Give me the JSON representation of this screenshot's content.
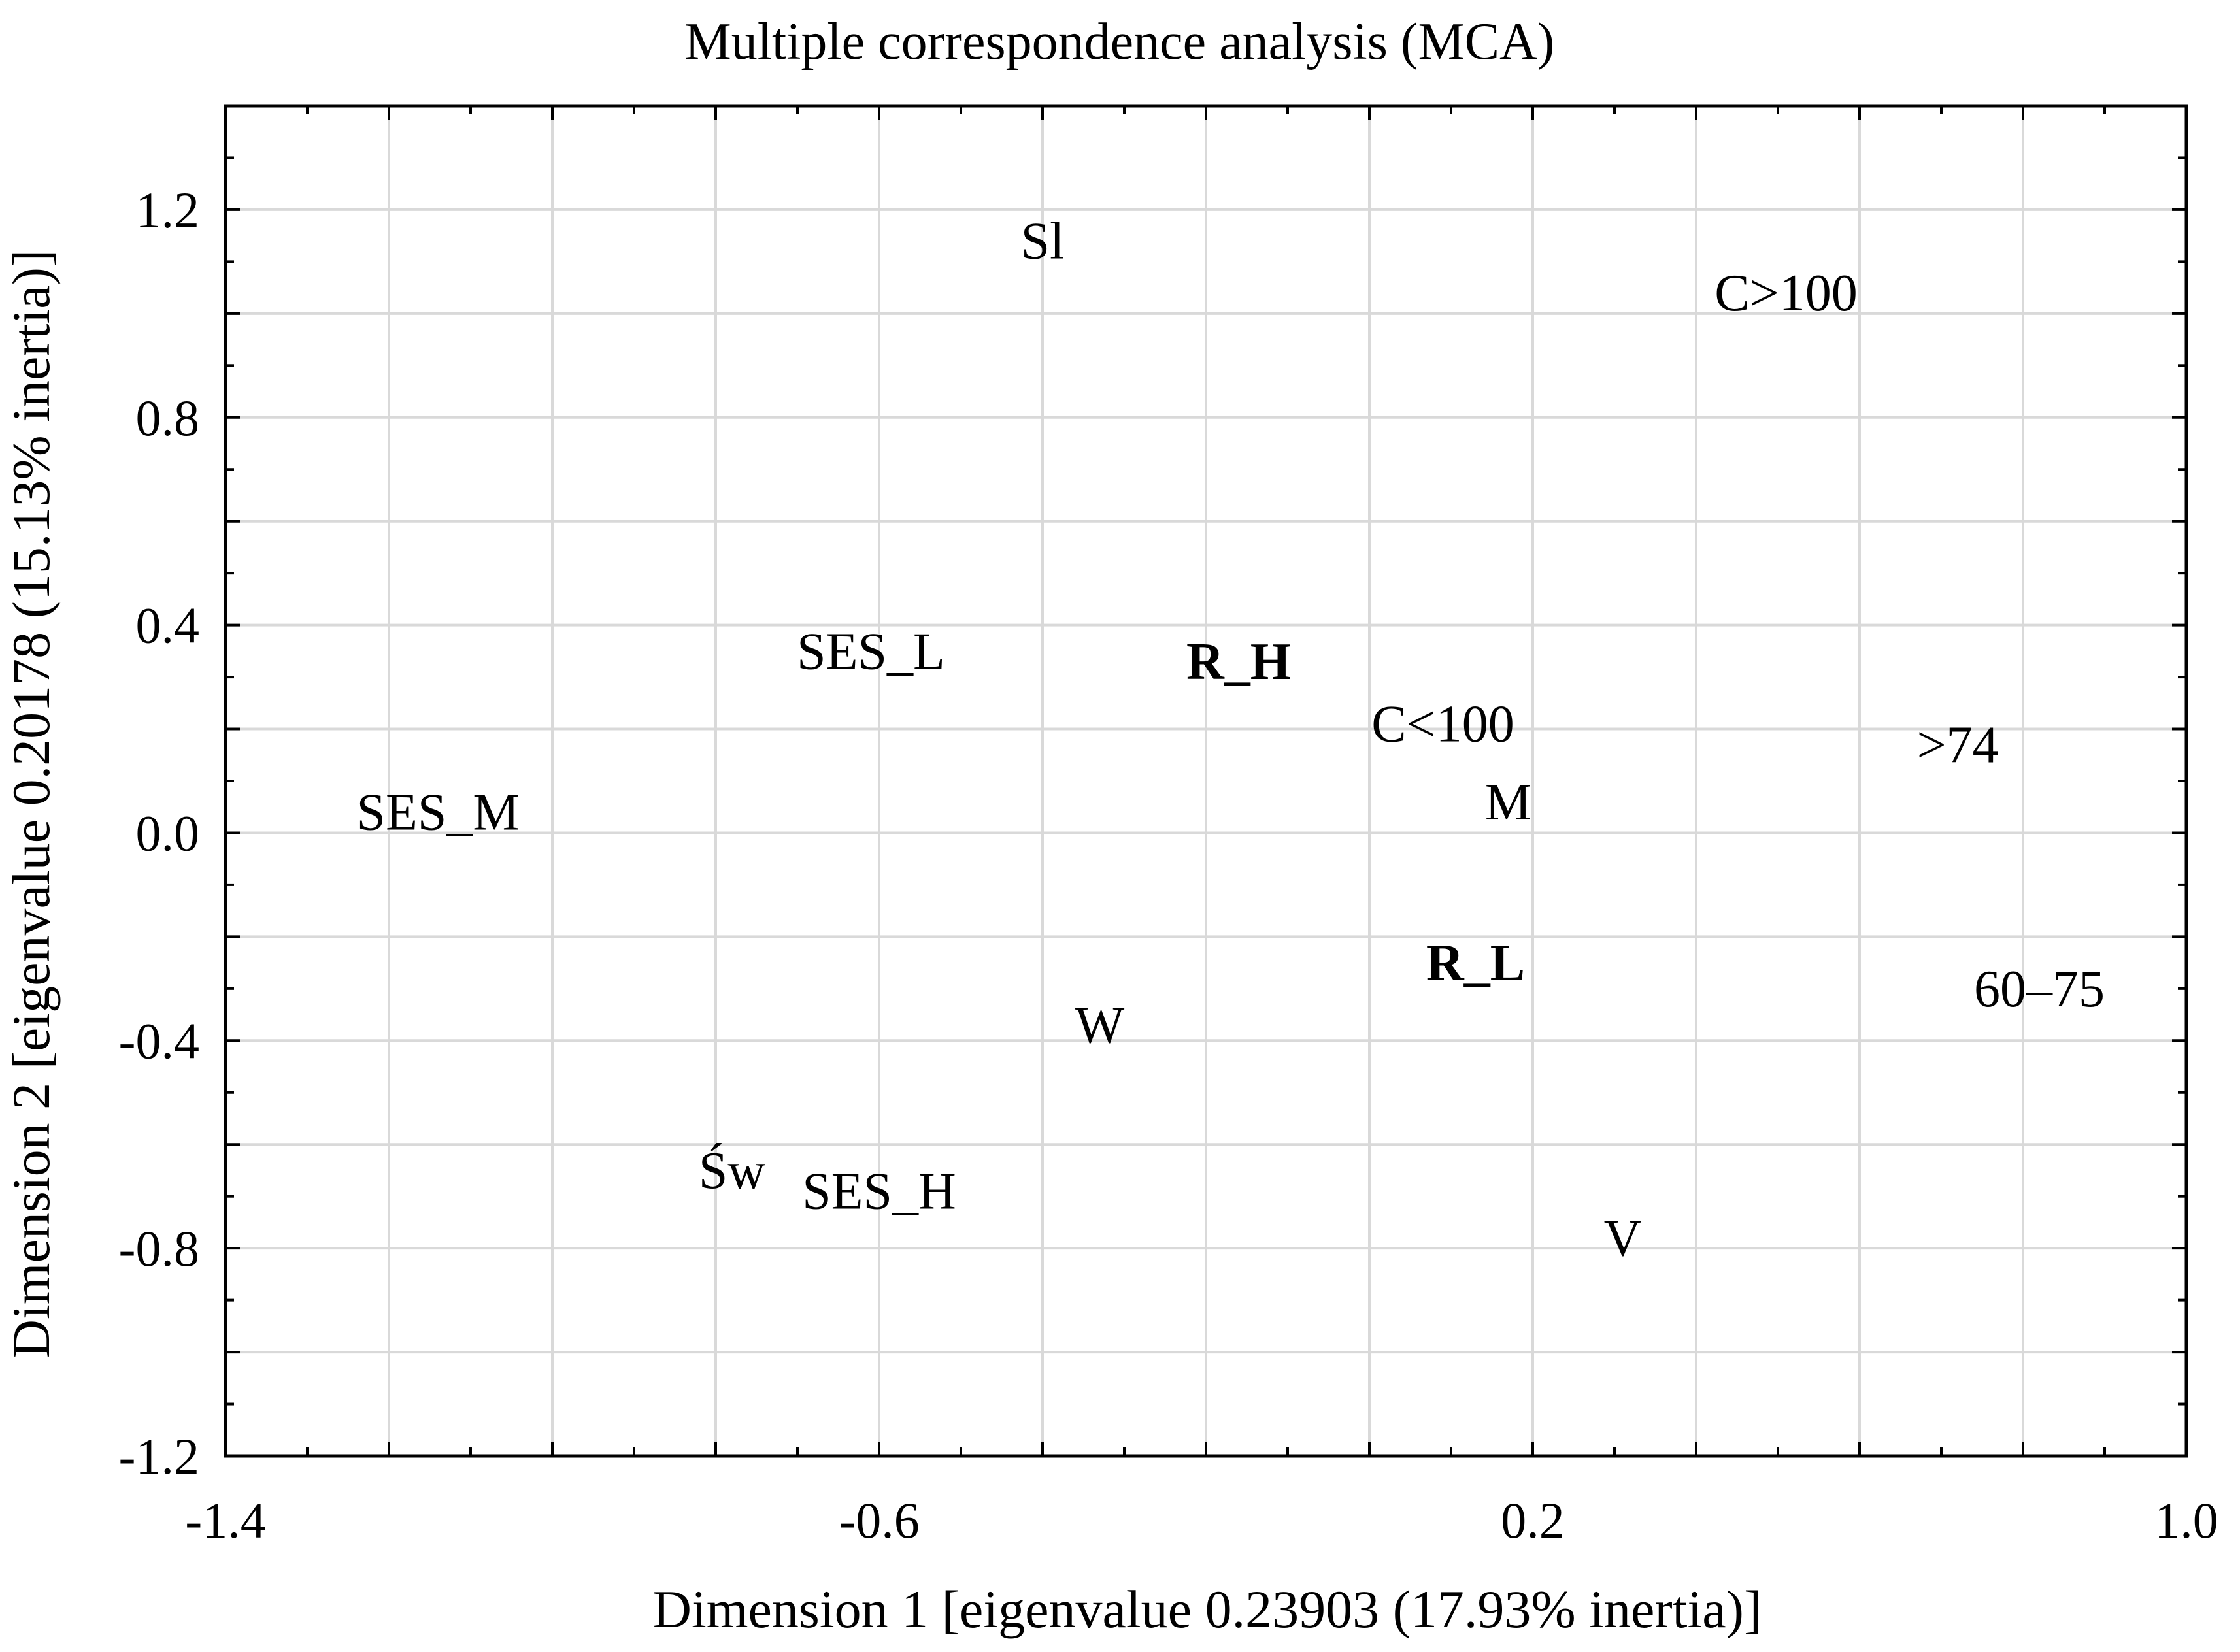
{
  "chart_data": {
    "type": "scatter",
    "title": "Multiple correspondence analysis (MCA)",
    "xlabel": "Dimension 1 [eigenvalue 0.23903 (17.93% inertia)]",
    "ylabel": "Dimension 2 [eigenvalue 0.20178 (15.13% inertia)]",
    "xlim": [
      -1.4,
      1.0
    ],
    "ylim": [
      -1.2,
      1.4
    ],
    "xticks": [
      -1.4,
      -0.6,
      0.2,
      1.0
    ],
    "xtick_labels": [
      "-1.4",
      "-0.6",
      "0.2",
      "1.0"
    ],
    "yticks": [
      -1.2,
      -0.8,
      -0.4,
      0.0,
      0.4,
      0.8,
      1.2
    ],
    "ytick_labels": [
      "-1.2",
      "-0.8",
      "-0.4",
      "0.0",
      "0.4",
      "0.8",
      "1.2"
    ],
    "grid": true,
    "points": [
      {
        "label": "Sl",
        "x": -0.4,
        "y": 1.14,
        "bold": false
      },
      {
        "label": "C>100",
        "x": 0.51,
        "y": 1.04,
        "bold": false
      },
      {
        "label": "SES_L",
        "x": -0.61,
        "y": 0.35,
        "bold": false
      },
      {
        "label": "R_H",
        "x": -0.16,
        "y": 0.33,
        "bold": true
      },
      {
        "label": "C<100",
        "x": 0.09,
        "y": 0.21,
        "bold": false
      },
      {
        "label": ">74",
        "x": 0.72,
        "y": 0.17,
        "bold": false
      },
      {
        "label": "SES_M",
        "x": -1.14,
        "y": 0.04,
        "bold": false
      },
      {
        "label": "M",
        "x": 0.17,
        "y": 0.06,
        "bold": false
      },
      {
        "label": "R_L",
        "x": 0.13,
        "y": -0.25,
        "bold": true
      },
      {
        "label": "60–75",
        "x": 0.82,
        "y": -0.3,
        "bold": false
      },
      {
        "label": "W",
        "x": -0.33,
        "y": -0.37,
        "bold": false
      },
      {
        "label": "Św",
        "x": -0.78,
        "y": -0.65,
        "bold": false
      },
      {
        "label": "SES_H",
        "x": -0.6,
        "y": -0.69,
        "bold": false
      },
      {
        "label": "V",
        "x": 0.31,
        "y": -0.78,
        "bold": false
      }
    ]
  }
}
